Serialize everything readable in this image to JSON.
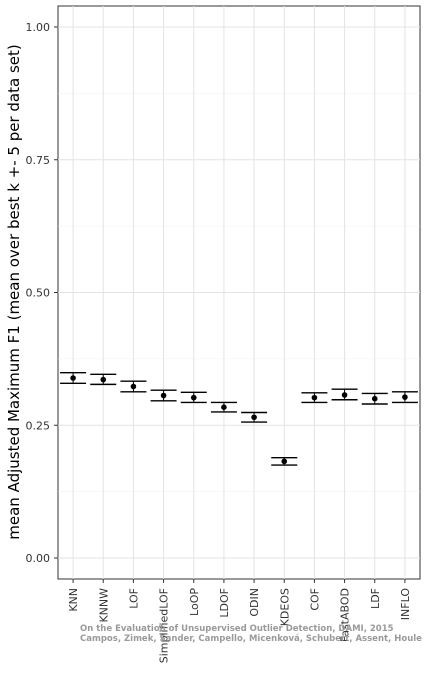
{
  "chart_data": {
    "type": "scatter",
    "subtype": "point-with-errorbars",
    "title": "",
    "xlabel": "",
    "ylabel": "mean Adjusted Maximum F1 (mean over best k +- 5 per data set)",
    "ylim": [
      0,
      1.05
    ],
    "yticks": [
      "0.00",
      "0.25",
      "0.50",
      "0.75",
      "1.00"
    ],
    "ytick_values": [
      0,
      0.25,
      0.5,
      0.75,
      1.0
    ],
    "categories": [
      "KNN",
      "KNNW",
      "LOF",
      "SimplifiedLOF",
      "LoOP",
      "LDOF",
      "ODIN",
      "KDEOS",
      "COF",
      "FastABOD",
      "LDF",
      "INFLO"
    ],
    "series": [
      {
        "values": [
          0.339,
          0.336,
          0.323,
          0.306,
          0.302,
          0.284,
          0.265,
          0.182,
          0.302,
          0.307,
          0.3,
          0.303
        ],
        "lower": [
          0.329,
          0.327,
          0.313,
          0.296,
          0.293,
          0.275,
          0.256,
          0.175,
          0.293,
          0.298,
          0.29,
          0.293
        ],
        "upper": [
          0.349,
          0.346,
          0.333,
          0.316,
          0.312,
          0.293,
          0.274,
          0.189,
          0.311,
          0.318,
          0.31,
          0.313
        ]
      }
    ],
    "grid": true,
    "legend": "none"
  },
  "watermark": {
    "line1": "On the Evaluation of Unsupervised Outlier Detection, DAMI, 2015",
    "line2": "Campos, Zimek, Sander, Campello, Micenková, Schubert, Assent, Houle"
  }
}
